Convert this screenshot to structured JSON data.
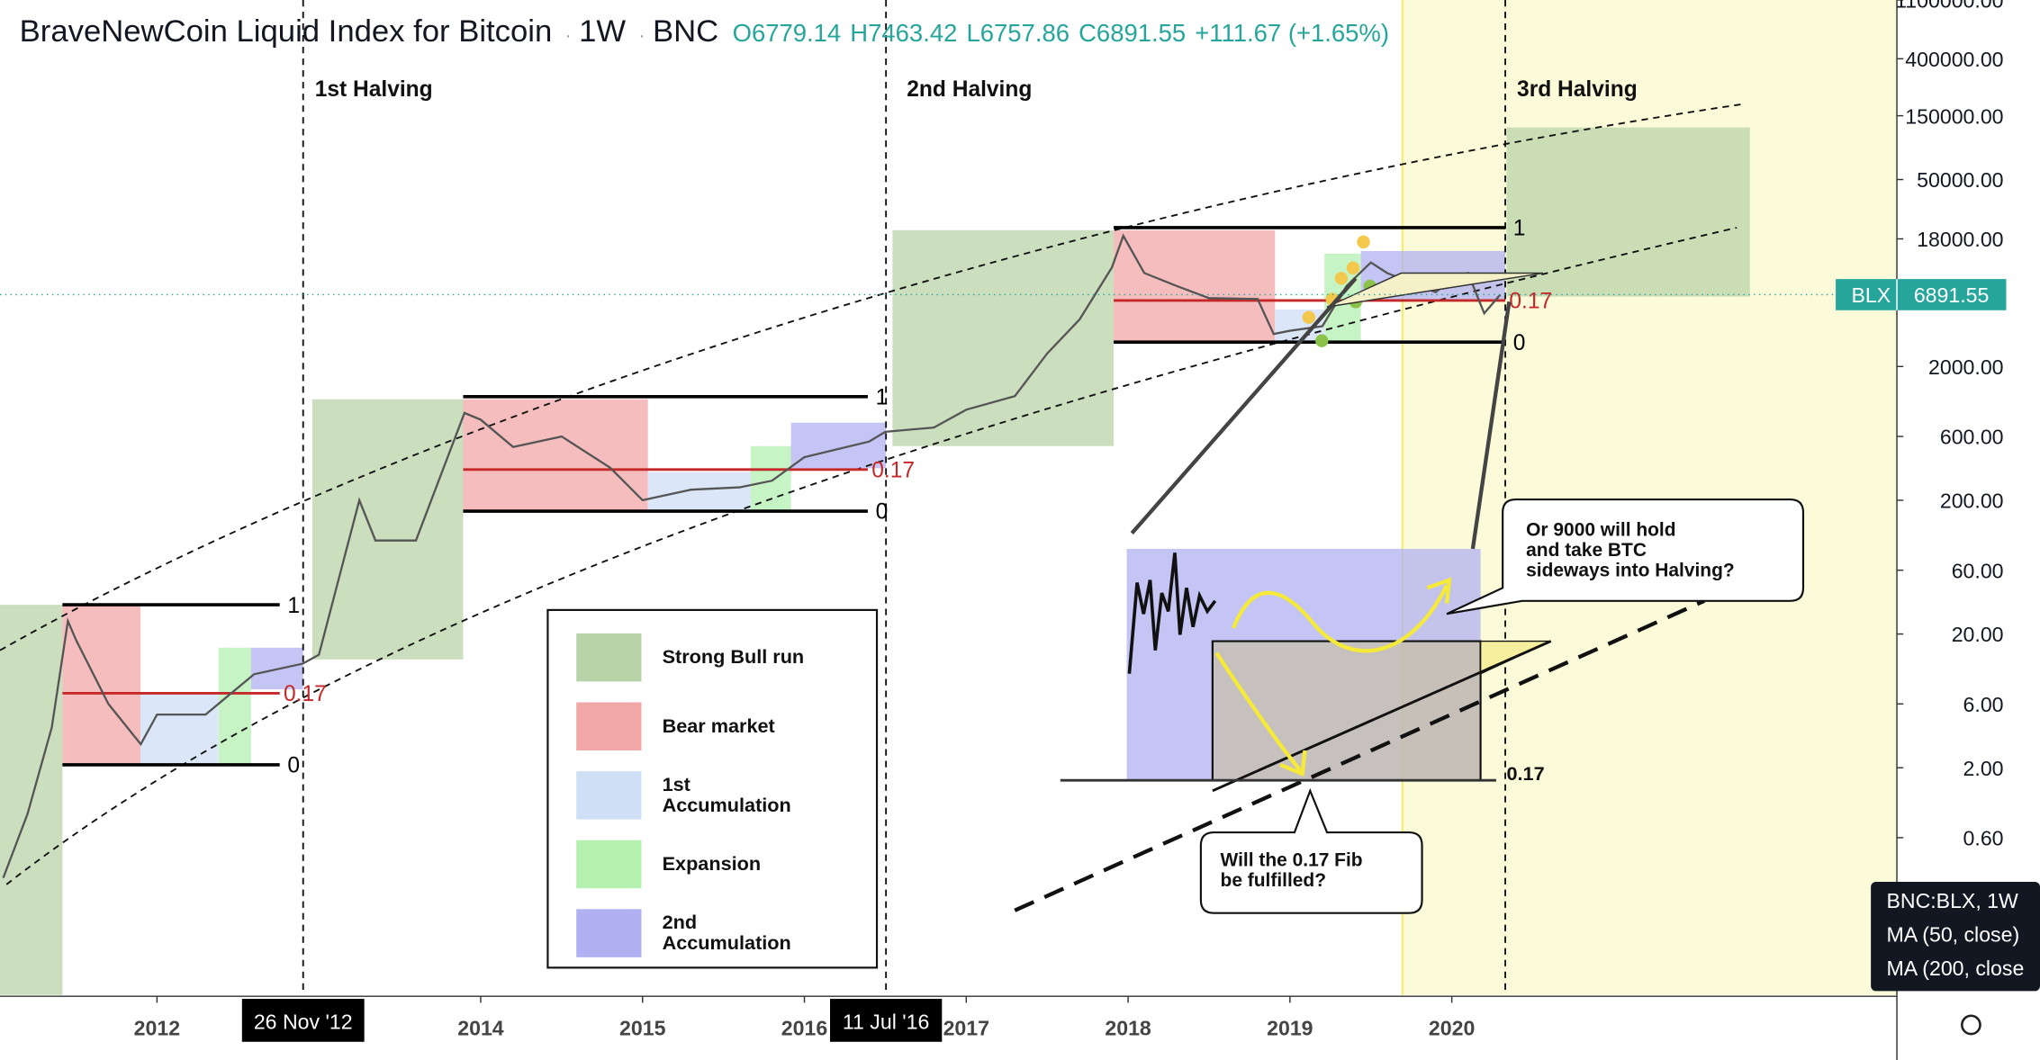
{
  "chart_data": {
    "type": "line",
    "title": "BraveNewCoin Liquid Index for Bitcoin",
    "interval": "1W",
    "exchange": "BNC",
    "ohlc": [
      "O6779.14",
      "H7463.42",
      "L6757.86",
      "C6891.55",
      "+111.67 (+1.65%)"
    ],
    "symbol": "BLX",
    "last_price": 6891.55,
    "color": "#555555",
    "log_scale": true,
    "grid": false,
    "x": [
      2011.05,
      2011.2,
      2011.35,
      2011.45,
      2011.5,
      2011.7,
      2011.9,
      2012.0,
      2012.3,
      2012.6,
      2012.9,
      2013.0,
      2013.25,
      2013.35,
      2013.6,
      2013.9,
      2014.0,
      2014.2,
      2014.5,
      2014.8,
      2015.0,
      2015.3,
      2015.6,
      2015.8,
      2016.0,
      2016.4,
      2016.5,
      2016.8,
      2017.0,
      2017.3,
      2017.5,
      2017.7,
      2017.9,
      2017.97,
      2018.1,
      2018.3,
      2018.5,
      2018.8,
      2018.9,
      2019.0,
      2019.2,
      2019.35,
      2019.5,
      2019.6,
      2019.8,
      2019.9,
      2020.0,
      2020.1,
      2020.2,
      2020.3
    ],
    "values": [
      0.3,
      0.9,
      4,
      25,
      18,
      6,
      3,
      5,
      5,
      10,
      12,
      14,
      200,
      100,
      100,
      900,
      800,
      500,
      600,
      350,
      200,
      240,
      250,
      280,
      420,
      550,
      650,
      700,
      950,
      1200,
      2500,
      4500,
      11000,
      19000,
      10000,
      8000,
      6500,
      6400,
      3500,
      3700,
      4000,
      8000,
      12000,
      10000,
      8000,
      7200,
      9000,
      10000,
      5000,
      6891.55
    ],
    "xlim": [
      2011.03,
      2022.75
    ],
    "xticks": [
      2012,
      2014,
      2015,
      2016,
      2017,
      2018,
      2019,
      2020
    ],
    "ylim": [
      0.04,
      1100000
    ],
    "yticks": [
      {
        "value": 1100000,
        "label": "1100000.00"
      },
      {
        "value": 400000,
        "label": "400000.00"
      },
      {
        "value": 150000,
        "label": "150000.00"
      },
      {
        "value": 50000,
        "label": "50000.00"
      },
      {
        "value": 18000,
        "label": "18000.00"
      },
      {
        "value": 2000,
        "label": "2000.00"
      },
      {
        "value": 600,
        "label": "600.00"
      },
      {
        "value": 200,
        "label": "200.00"
      },
      {
        "value": 60,
        "label": "60.00"
      },
      {
        "value": 20,
        "label": "20.00"
      },
      {
        "value": 6,
        "label": "6.00"
      },
      {
        "value": 2,
        "label": "2.00"
      },
      {
        "value": 0.6,
        "label": "0.60"
      }
    ],
    "halvings": [
      "1st Halving",
      "2nd Halving",
      "3rd Halving"
    ],
    "halving_dates": [
      "26 Nov '12",
      "11 Jul '16"
    ],
    "fib_levels": [
      1,
      0.17,
      0
    ],
    "legend": [
      {
        "label": [
          "Strong Bull run"
        ],
        "color": "#b9d3a8"
      },
      {
        "label": [
          "Bear market"
        ],
        "color": "#f2a7a7"
      },
      {
        "label": [
          "1st",
          "Accumulation"
        ],
        "color": "#cfdff5"
      },
      {
        "label": [
          "Expansion"
        ],
        "color": "#b4f0b0"
      },
      {
        "label": [
          "2nd",
          "Accumulation"
        ],
        "color": "#b0b0f2"
      }
    ],
    "callouts": [
      [
        "Or 9000 will hold",
        "and take BTC",
        "sideways into Halving?"
      ],
      [
        "Will the 0.17 Fib",
        "be fulfilled?"
      ]
    ],
    "status_panel": [
      "BNC:BLX, 1W",
      "MA (50, close)",
      "MA (200, close"
    ]
  }
}
